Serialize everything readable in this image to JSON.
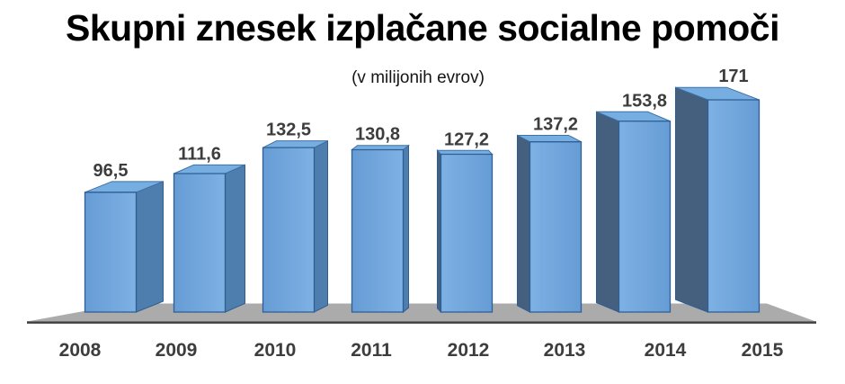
{
  "chart_data": {
    "type": "bar",
    "style": "3d-perspective-columns",
    "title": "Skupni znesek izplačane socialne pomoči",
    "subtitle_unit": "(v milijonih evrov)",
    "categories": [
      "2008",
      "2009",
      "2010",
      "2011",
      "2012",
      "2013",
      "2014",
      "2015"
    ],
    "values": [
      96.5,
      111.6,
      132.5,
      130.8,
      127.2,
      137.2,
      153.8,
      171
    ],
    "value_labels": [
      "96,5",
      "111,6",
      "132,5",
      "130,8",
      "127,2",
      "137,2",
      "153,8",
      "171"
    ],
    "xlabel": "",
    "ylabel": "",
    "ylim": [
      0,
      180
    ],
    "grid": false,
    "legend": "none",
    "colors": {
      "bar_front": "#6FA3DC",
      "bar_front_light": "#7EB1E4",
      "bar_front_dark": "#669CD5",
      "bar_side_light": "#4E7EAE",
      "bar_side_dark": "#45607E",
      "bar_top": "#77AEE1",
      "bar_outline": "#2E5E93",
      "top_outline": "#3F71A5",
      "floor": "#ABABAB",
      "axis_line": "#404040",
      "label_text": "#3D3D3D",
      "title_text": "#000000"
    }
  }
}
